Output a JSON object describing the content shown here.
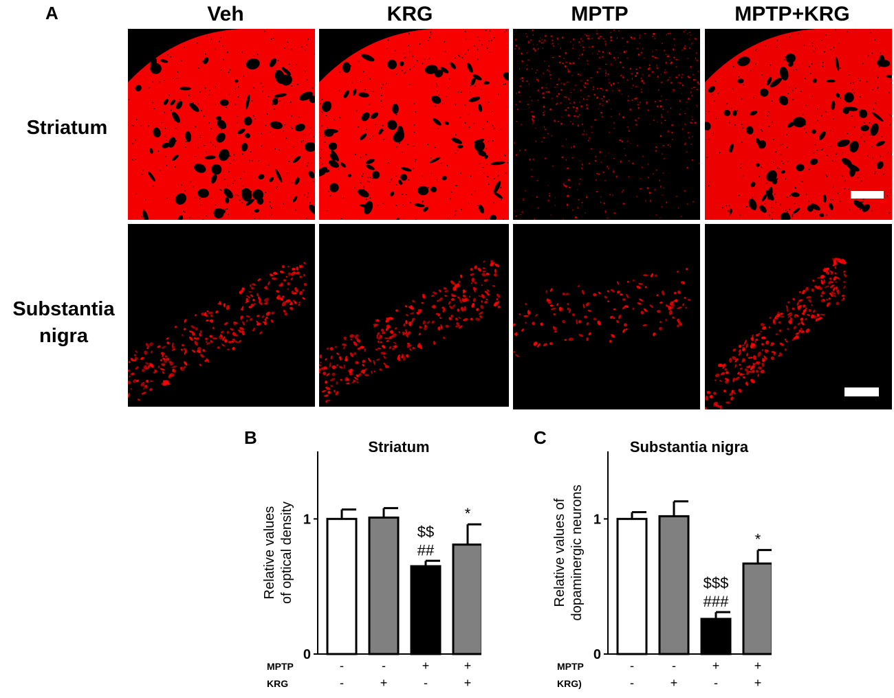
{
  "panel_labels": {
    "a": "A",
    "b": "B",
    "c": "C"
  },
  "columns": [
    "Veh",
    "KRG",
    "MPTP",
    "MPTP+KRG"
  ],
  "rows": {
    "striatum": "Striatum",
    "sn_line1": "Substantia",
    "sn_line2": "nigra"
  },
  "stain_color": "#ff0000",
  "micrographs": {
    "striatum": [
      {
        "name": "Veh",
        "intensity": 0.85
      },
      {
        "name": "KRG",
        "intensity": 0.9
      },
      {
        "name": "MPTP",
        "intensity": 0.3
      },
      {
        "name": "MPTP+KRG",
        "intensity": 0.7
      }
    ],
    "substantia_nigra": [
      {
        "name": "Veh",
        "intensity": 0.6
      },
      {
        "name": "KRG",
        "intensity": 0.65
      },
      {
        "name": "MPTP",
        "intensity": 0.3
      },
      {
        "name": "MPTP+KRG",
        "intensity": 0.6
      }
    ]
  },
  "chart_data": [
    {
      "type": "bar",
      "panel": "B",
      "title": "Striatum",
      "ylabel_line1": "Relative values",
      "ylabel_line2": "of optical density",
      "ylim": [
        0,
        1.5
      ],
      "yticks": [
        "0",
        "1"
      ],
      "values": [
        1.0,
        1.01,
        0.65,
        0.81
      ],
      "errors": [
        0.07,
        0.07,
        0.04,
        0.15
      ],
      "colors": [
        "#ffffff",
        "#808080",
        "#000000",
        "#808080"
      ],
      "annotations": [
        {
          "bar": 2,
          "lines": [
            "$$",
            "##"
          ]
        },
        {
          "bar": 3,
          "lines": [
            "*"
          ]
        }
      ],
      "factor_table": [
        {
          "label": "MPTP",
          "signs": [
            "-",
            "-",
            "+",
            "+"
          ]
        },
        {
          "label": "KRG",
          "signs": [
            "-",
            "+",
            "-",
            "+"
          ]
        }
      ]
    },
    {
      "type": "bar",
      "panel": "C",
      "title": "Substantia nigra",
      "ylabel_line1": "Relative values of",
      "ylabel_line2": "dopaminergic neurons",
      "ylim": [
        0,
        1.5
      ],
      "yticks": [
        "0",
        "1"
      ],
      "values": [
        1.0,
        1.02,
        0.26,
        0.67
      ],
      "errors": [
        0.05,
        0.11,
        0.05,
        0.1
      ],
      "colors": [
        "#ffffff",
        "#808080",
        "#000000",
        "#808080"
      ],
      "annotations": [
        {
          "bar": 2,
          "lines": [
            "$$$",
            "###"
          ]
        },
        {
          "bar": 3,
          "lines": [
            "*"
          ]
        }
      ],
      "factor_table": [
        {
          "label": "MPTP",
          "signs": [
            "-",
            "-",
            "+",
            "+"
          ]
        },
        {
          "label": "KRG)",
          "signs": [
            "-",
            "+",
            "-",
            "+"
          ]
        }
      ]
    }
  ]
}
